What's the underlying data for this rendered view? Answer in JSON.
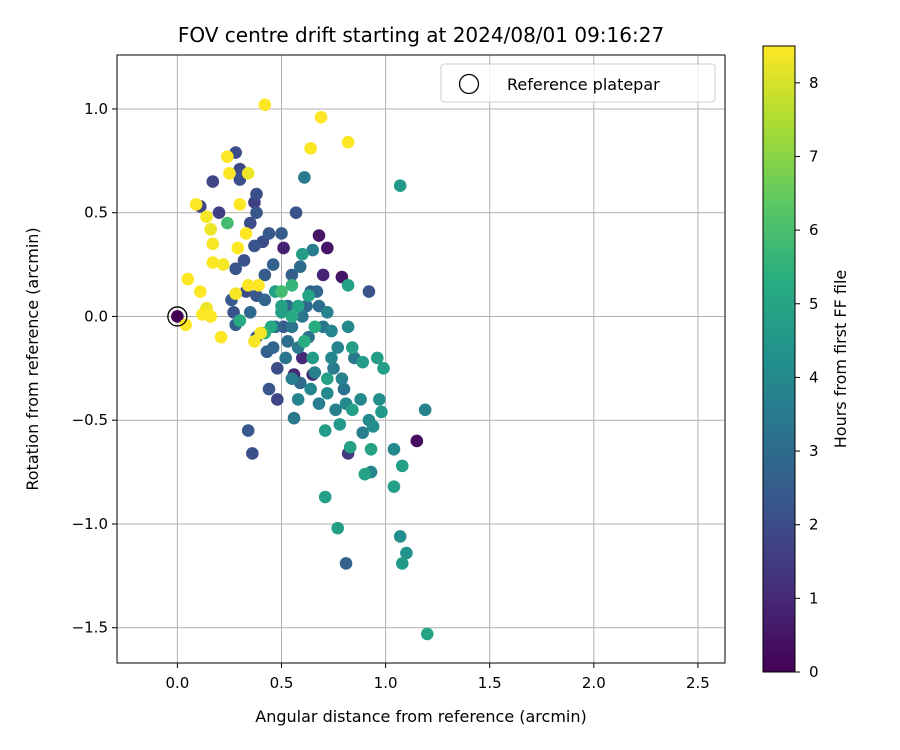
{
  "chart_data": {
    "type": "scatter",
    "title": "FOV centre drift starting at 2024/08/01 09:16:27",
    "xlabel": "Angular distance from reference (arcmin)",
    "ylabel": "Rotation from reference (arcmin)",
    "xlim": [
      -0.29,
      2.63
    ],
    "ylim": [
      -1.67,
      1.26
    ],
    "xticks": [
      0.0,
      0.5,
      1.0,
      1.5,
      2.0,
      2.5
    ],
    "xtick_labels": [
      "0.0",
      "0.5",
      "1.0",
      "1.5",
      "2.0",
      "2.5"
    ],
    "yticks": [
      1.0,
      0.5,
      0.0,
      -0.5,
      -1.0,
      -1.5
    ],
    "ytick_labels": [
      "1.0",
      "0.5",
      "0.0",
      "−0.5",
      "−1.0",
      "−1.5"
    ],
    "grid": true,
    "legend": {
      "placement": "top-right",
      "entries": [
        "Reference platepar"
      ]
    },
    "reference_point": {
      "x": 0.0,
      "y": 0.0
    },
    "colorbar": {
      "label": "Hours from first FF file",
      "colormap": "viridis",
      "range": [
        0,
        8.5
      ],
      "ticks": [
        0,
        1,
        2,
        3,
        4,
        5,
        6,
        7,
        8
      ],
      "tick_labels": [
        "0",
        "1",
        "2",
        "3",
        "4",
        "5",
        "6",
        "7",
        "8"
      ]
    },
    "series": [
      {
        "columns": [
          "x",
          "y",
          "hours"
        ],
        "points": [
          [
            0.0,
            0.0,
            0.0
          ],
          [
            0.68,
            0.39,
            0.5
          ],
          [
            0.72,
            0.33,
            0.5
          ],
          [
            0.79,
            0.19,
            0.5
          ],
          [
            0.51,
            0.33,
            0.8
          ],
          [
            1.15,
            -0.6,
            0.3
          ],
          [
            0.7,
            0.2,
            0.9
          ],
          [
            0.6,
            -0.2,
            1.0
          ],
          [
            0.65,
            -0.28,
            0.9
          ],
          [
            0.56,
            -0.28,
            1.0
          ],
          [
            0.82,
            -0.66,
            1.5
          ],
          [
            0.17,
            0.65,
            1.8
          ],
          [
            0.2,
            0.5,
            1.6
          ],
          [
            0.11,
            0.53,
            1.8
          ],
          [
            0.28,
            0.79,
            2.0
          ],
          [
            0.3,
            0.71,
            1.9
          ],
          [
            0.3,
            0.66,
            2.1
          ],
          [
            0.38,
            0.59,
            2.1
          ],
          [
            0.37,
            0.55,
            1.6
          ],
          [
            0.35,
            0.45,
            2.0
          ],
          [
            0.38,
            0.5,
            2.3
          ],
          [
            0.57,
            0.5,
            2.2
          ],
          [
            0.44,
            0.4,
            2.4
          ],
          [
            0.5,
            0.4,
            2.5
          ],
          [
            0.41,
            0.36,
            2.0
          ],
          [
            0.37,
            0.34,
            2.2
          ],
          [
            0.32,
            0.27,
            2.1
          ],
          [
            0.28,
            0.23,
            2.3
          ],
          [
            0.33,
            0.12,
            2.0
          ],
          [
            0.38,
            0.1,
            2.3
          ],
          [
            0.42,
            0.2,
            2.5
          ],
          [
            0.26,
            0.08,
            2.4
          ],
          [
            0.27,
            0.02,
            2.2
          ],
          [
            0.28,
            -0.04,
            2.6
          ],
          [
            0.38,
            -0.1,
            2.3
          ],
          [
            0.43,
            -0.17,
            2.6
          ],
          [
            0.48,
            -0.25,
            2.0
          ],
          [
            0.44,
            -0.35,
            2.3
          ],
          [
            0.48,
            -0.4,
            1.8
          ],
          [
            0.34,
            -0.55,
            2.4
          ],
          [
            0.36,
            -0.66,
            2.1
          ],
          [
            0.81,
            -1.19,
            2.7
          ],
          [
            0.92,
            0.12,
            2.2
          ],
          [
            0.59,
            0.24,
            3.0
          ],
          [
            0.64,
            0.12,
            2.8
          ],
          [
            0.68,
            0.05,
            3.1
          ],
          [
            0.63,
            -0.1,
            3.2
          ],
          [
            0.7,
            -0.05,
            3.4
          ],
          [
            0.55,
            -0.05,
            3.3
          ],
          [
            0.53,
            0.05,
            3.0
          ],
          [
            0.6,
            0.0,
            3.4
          ],
          [
            0.58,
            -0.15,
            3.5
          ],
          [
            0.61,
            0.67,
            3.5
          ],
          [
            0.65,
            0.32,
            3.6
          ],
          [
            0.72,
            0.02,
            3.8
          ],
          [
            0.74,
            -0.07,
            3.9
          ],
          [
            0.77,
            -0.15,
            3.8
          ],
          [
            0.82,
            -0.05,
            4.0
          ],
          [
            0.79,
            -0.3,
            3.7
          ],
          [
            0.74,
            -0.2,
            3.9
          ],
          [
            0.66,
            -0.27,
            3.7
          ],
          [
            0.72,
            -0.37,
            4.0
          ],
          [
            0.68,
            -0.42,
            3.6
          ],
          [
            0.64,
            -0.35,
            3.9
          ],
          [
            0.58,
            -0.4,
            3.8
          ],
          [
            0.56,
            -0.49,
            3.4
          ],
          [
            0.76,
            -0.45,
            3.7
          ],
          [
            0.81,
            -0.42,
            4.0
          ],
          [
            0.88,
            -0.4,
            4.0
          ],
          [
            0.97,
            -0.4,
            4.2
          ],
          [
            0.92,
            -0.5,
            4.0
          ],
          [
            0.89,
            -0.56,
            3.6
          ],
          [
            0.94,
            -0.53,
            4.1
          ],
          [
            0.93,
            -0.75,
            3.9
          ],
          [
            1.04,
            -0.64,
            4.0
          ],
          [
            1.07,
            -1.06,
            4.2
          ],
          [
            1.1,
            -1.14,
            4.3
          ],
          [
            1.08,
            -1.19,
            4.6
          ],
          [
            1.07,
            0.63,
            4.6
          ],
          [
            1.19,
            -0.45,
            3.8
          ],
          [
            0.96,
            -0.2,
            4.7
          ],
          [
            0.99,
            -0.25,
            4.8
          ],
          [
            0.89,
            -0.22,
            4.7
          ],
          [
            0.84,
            -0.15,
            4.8
          ],
          [
            0.82,
            0.15,
            4.9
          ],
          [
            1.04,
            -0.82,
            4.8
          ],
          [
            1.08,
            -0.72,
            4.8
          ],
          [
            1.2,
            -1.53,
            5.0
          ],
          [
            0.71,
            -0.87,
            4.8
          ],
          [
            0.77,
            -1.02,
            4.8
          ],
          [
            0.9,
            -0.76,
            4.9
          ],
          [
            0.83,
            -0.63,
            4.9
          ],
          [
            0.71,
            -0.55,
            4.7
          ],
          [
            0.78,
            -0.52,
            4.5
          ],
          [
            0.93,
            -0.64,
            4.9
          ],
          [
            0.98,
            -0.46,
            4.6
          ],
          [
            0.84,
            -0.45,
            4.8
          ],
          [
            0.72,
            -0.3,
            4.9
          ],
          [
            0.65,
            -0.2,
            4.7
          ],
          [
            0.6,
            0.3,
            4.7
          ],
          [
            0.63,
            0.1,
            5.0
          ],
          [
            0.58,
            0.05,
            5.0
          ],
          [
            0.55,
            0.0,
            5.2
          ],
          [
            0.5,
            0.05,
            4.9
          ],
          [
            0.47,
            0.12,
            4.8
          ],
          [
            0.45,
            -0.05,
            5.1
          ],
          [
            0.5,
            0.02,
            4.8
          ],
          [
            0.3,
            -0.02,
            5.2
          ],
          [
            0.42,
            -0.08,
            5.5
          ],
          [
            0.5,
            0.12,
            5.9
          ],
          [
            0.24,
            0.45,
            5.9
          ],
          [
            0.55,
            0.15,
            5.6
          ],
          [
            0.66,
            -0.05,
            5.3
          ],
          [
            0.61,
            -0.12,
            5.3
          ],
          [
            0.42,
            1.02,
            8.5
          ],
          [
            0.69,
            0.96,
            8.5
          ],
          [
            0.64,
            0.81,
            8.5
          ],
          [
            0.82,
            0.84,
            8.5
          ],
          [
            0.24,
            0.77,
            8.5
          ],
          [
            0.25,
            0.69,
            8.5
          ],
          [
            0.34,
            0.69,
            8.3
          ],
          [
            0.09,
            0.54,
            8.5
          ],
          [
            0.14,
            0.48,
            8.4
          ],
          [
            0.3,
            0.54,
            8.5
          ],
          [
            0.16,
            0.42,
            8.3
          ],
          [
            0.33,
            0.4,
            8.5
          ],
          [
            0.17,
            0.35,
            8.4
          ],
          [
            0.29,
            0.33,
            8.5
          ],
          [
            0.17,
            0.26,
            8.5
          ],
          [
            0.22,
            0.25,
            8.4
          ],
          [
            0.05,
            0.18,
            8.5
          ],
          [
            0.11,
            0.12,
            8.5
          ],
          [
            0.28,
            0.11,
            8.4
          ],
          [
            0.34,
            0.15,
            8.5
          ],
          [
            0.39,
            0.15,
            8.5
          ],
          [
            0.14,
            0.04,
            8.3
          ],
          [
            0.12,
            0.01,
            8.5
          ],
          [
            0.16,
            0.0,
            8.5
          ],
          [
            0.04,
            -0.04,
            8.5
          ],
          [
            0.21,
            -0.1,
            8.5
          ],
          [
            0.37,
            -0.12,
            8.4
          ],
          [
            0.4,
            -0.08,
            8.4
          ],
          [
            0.47,
            -0.05,
            3.0
          ],
          [
            0.53,
            -0.12,
            3.1
          ],
          [
            0.42,
            0.08,
            2.8
          ],
          [
            0.55,
            0.2,
            2.6
          ],
          [
            0.62,
            0.05,
            2.9
          ],
          [
            0.52,
            -0.2,
            3.3
          ],
          [
            0.35,
            0.02,
            2.9
          ],
          [
            0.46,
            0.25,
            2.7
          ],
          [
            0.67,
            0.12,
            2.9
          ],
          [
            0.51,
            -0.05,
            2.5
          ],
          [
            0.46,
            -0.15,
            2.8
          ],
          [
            0.59,
            -0.32,
            3.0
          ],
          [
            0.75,
            -0.25,
            3.5
          ],
          [
            0.85,
            -0.2,
            3.4
          ],
          [
            0.8,
            -0.35,
            3.3
          ],
          [
            0.55,
            -0.3,
            3.6
          ]
        ]
      }
    ]
  }
}
